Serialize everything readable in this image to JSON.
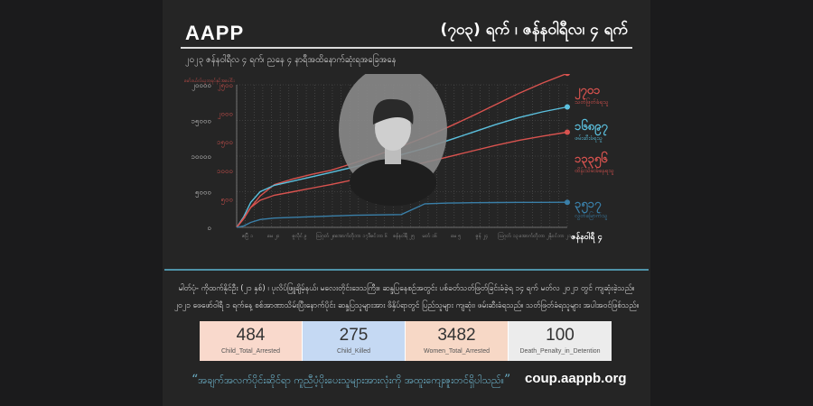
{
  "header": {
    "brand": "AAPP",
    "headline": "(၇၀၃) ရက် ၊ ဇန်နဝါရီလ၊ ၄ ရက်",
    "subtitle": "၂၀၂၃ ဇန်နဝါရီလ ၄ ရက်၊ ညနေ ၄ နာရီအထိနောက်ဆုံးရအခြေအနေ"
  },
  "chart_data": {
    "type": "line",
    "legend_note": "မော်ဒယ်လ်ယူဘုရင်နှင့်အပေါင်း",
    "x_end_label": "ဇန်နဝါရီ ၄",
    "x_tick_labels": [
      "ဧပြီ ၁",
      "မေ ၂၀",
      "ဇူလိုင် ၉",
      "ဩဂုတ် ၂၈",
      "အောက်တိုဘာ ၁၇",
      "ဒီဇင်ဘာ ၆",
      "ဇန်နဝါရီ ၂၅",
      "မတ် ၁၆",
      "မေ ၅",
      "ဇွန် ၂၄",
      "ဩဂုတ် ၁၃",
      "အောက်တိုဘာ ၂",
      "နိုဝင်ဘာ ၂၁"
    ],
    "y_ticks_left": [
      0,
      5000,
      10000,
      15000,
      20000
    ],
    "y_ticks_left_labels": [
      "၀",
      "၅၀၀၀",
      "၁၀၀၀၀",
      "၁၅၀၀၀",
      "၂၀၀၀၀"
    ],
    "y_ticks_right_labels": [
      "၀",
      "၅၀၀",
      "၁၀၀၀",
      "၁၅၀၀",
      "၂၀၀၀",
      "၂၅၀၀"
    ],
    "x_range": [
      0,
      703
    ],
    "ylim": [
      0,
      20000
    ],
    "series": [
      {
        "name": "သတ်ဖြတ်ခံရသူ",
        "end_value_label": "၂၇၀၁",
        "color": "#d9534f",
        "axis": "right",
        "x": [
          0,
          15,
          30,
          50,
          80,
          120,
          160,
          200,
          250,
          300,
          350,
          400,
          450,
          500,
          550,
          600,
          650,
          703
        ],
        "values": [
          0,
          150,
          350,
          550,
          750,
          850,
          930,
          1000,
          1130,
          1270,
          1420,
          1580,
          1760,
          1950,
          2150,
          2350,
          2530,
          2701
        ]
      },
      {
        "name": "ဖမ်းဆီးခံရသူ",
        "end_value_label": "၁၆၈၉၇",
        "color": "#5bc0de",
        "axis": "left",
        "x": [
          0,
          15,
          30,
          50,
          80,
          120,
          160,
          200,
          250,
          300,
          350,
          400,
          450,
          500,
          550,
          600,
          650,
          703
        ],
        "values": [
          0,
          1500,
          3500,
          5000,
          5900,
          6500,
          7100,
          7700,
          8500,
          9300,
          10200,
          11100,
          12200,
          13300,
          14400,
          15400,
          16200,
          16897
        ]
      },
      {
        "name": "ထိန်းသိမ်းခံနေရသူ",
        "end_value_label": "၁၃၃၅၆",
        "color": "#d9534f",
        "axis": "left",
        "x": [
          0,
          15,
          30,
          50,
          80,
          120,
          160,
          200,
          250,
          300,
          350,
          400,
          450,
          500,
          550,
          600,
          650,
          703
        ],
        "values": [
          0,
          1300,
          2800,
          3800,
          4500,
          5000,
          5500,
          6000,
          6700,
          7500,
          8300,
          9100,
          9900,
          10700,
          11500,
          12200,
          12800,
          13356
        ]
      },
      {
        "name": "လွတ်မြောက်သူ",
        "end_value_label": "၃၅၁၇",
        "color": "#3a7fa8",
        "axis": "left",
        "x": [
          0,
          15,
          30,
          50,
          80,
          120,
          160,
          200,
          250,
          300,
          350,
          400,
          450,
          500,
          550,
          600,
          650,
          703
        ],
        "values": [
          0,
          200,
          700,
          1100,
          1300,
          1400,
          1500,
          1600,
          1700,
          1750,
          1800,
          3300,
          3400,
          3450,
          3480,
          3500,
          3510,
          3517
        ]
      }
    ]
  },
  "notes": {
    "line1": "မါတ်ပုံ- ကိုထက်နိုင်ဦး (၂၁ နှစ်) ၊ ပုလိပ်ဖြူချိမ့်နယ်၊ မလေးတိုင်းဒေသကြီး။ ဆန္ဒပြနေစဉ်အတွင်း ပစ်ခတ်သတ်ဖြတ်ခြင်းခံခဲ့ရ ၁၄ ရက် မတ်လ ၂၀၂၁ တွင် ကျဆုံးခဲ့သည်။",
    "line2": "၂၀၂၁ ဖေဖော်ဝါရီ ၁ ရက်နေ့ စစ်အာဏာသိမ်းပြီးနောက်ပိုင်း ဆန္ဒပြသူများအား ဖိနှိပ်ရာတွင် ပြည်သူများ ကျဆုံး၊ ဖမ်းဆီးခံရသည်။ သတ်ဖြတ်ခံရသူများ အပါအဝင်ဖြစ်သည်။"
  },
  "stats": [
    {
      "value": "484",
      "label": "Child_Total_Arrested",
      "color": "#f9d9cc"
    },
    {
      "value": "275",
      "label": "Child_Killed",
      "color": "#c5d9f3"
    },
    {
      "value": "3482",
      "label": "Women_Total_Arrested",
      "color": "#f7d8c6"
    },
    {
      "value": "100",
      "label": "Death_Penalty_in_Detention",
      "color": "#ececec"
    }
  ],
  "footer": {
    "quote": "အချက်အလက်ပိုင်းဆိုင်ရာ ကူညီပံ့ပိုးပေးသူများအားလုံးကို အထူးကျေးဇူးတင်ရှိပါသည်။",
    "open_quote": "“",
    "close_quote": "”",
    "url": "coup.aappb.org"
  }
}
